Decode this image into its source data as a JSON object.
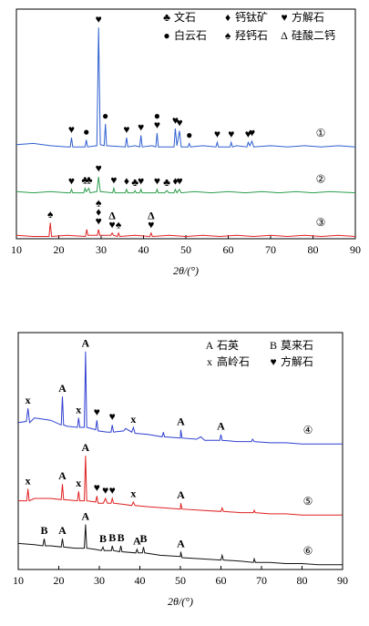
{
  "chart_data": [
    {
      "type": "line",
      "xlabel": "2θ/(°)",
      "xlim": [
        10,
        90
      ],
      "xticks": [
        10,
        20,
        30,
        40,
        50,
        60,
        70,
        80,
        90
      ],
      "ylim": [
        0,
        100
      ],
      "legend": [
        {
          "symbol": "♣",
          "label": "文石"
        },
        {
          "symbol": "♦",
          "label": "钙钛矿"
        },
        {
          "symbol": "♥",
          "label": "方解石"
        },
        {
          "symbol": "●",
          "label": "白云石"
        },
        {
          "symbol": "♠",
          "label": "羟钙石"
        },
        {
          "symbol": "Δ",
          "label": "硅酸二钙"
        }
      ],
      "series": [
        {
          "name": "①",
          "color": "#2f5fd0",
          "x": [
            10,
            14,
            18,
            22,
            22.7,
            23,
            23.3,
            26.2,
            26.5,
            26.8,
            29,
            29.4,
            29.8,
            30.7,
            31,
            31.3,
            35.7,
            36,
            36.3,
            38,
            39.1,
            39.4,
            39.7,
            42,
            42.9,
            43.2,
            43.5,
            46,
            47.2,
            47.5,
            47.9,
            48.5,
            48.9,
            50.5,
            50.8,
            51.1,
            54,
            57.1,
            57.4,
            57.7,
            60.4,
            60.7,
            61,
            62,
            64.4,
            64.7,
            65.1,
            65.6,
            66,
            70,
            74,
            78,
            82,
            86,
            90
          ],
          "values": [
            41,
            41.5,
            40.5,
            40,
            40,
            44,
            40,
            40,
            43,
            40,
            40.5,
            92,
            41,
            40.5,
            50,
            40.5,
            40,
            44,
            40,
            40.5,
            40,
            45,
            40,
            40.5,
            40,
            46,
            40,
            40,
            40,
            48,
            40.5,
            47,
            40,
            40,
            41.5,
            40,
            40.5,
            40,
            42,
            40,
            40,
            42,
            40,
            40.5,
            40,
            42,
            40.5,
            42.5,
            40,
            40.5,
            40,
            40.5,
            40,
            40.5,
            40
          ],
          "peaks": [
            {
              "text": "♥",
              "x": 23
            },
            {
              "text": "●",
              "x": 26.5
            },
            {
              "text": "♥",
              "x": 29.4
            },
            {
              "text": "●",
              "x": 31
            },
            {
              "text": "♥",
              "x": 36
            },
            {
              "text": "♥",
              "x": 39.4
            },
            {
              "text": "♥",
              "x": 43.2
            },
            {
              "text": "●",
              "x": 43.2
            },
            {
              "text": "♥",
              "x": 47.5
            },
            {
              "text": "♥",
              "x": 48.5
            },
            {
              "text": "●",
              "x": 50.8
            },
            {
              "text": "♥",
              "x": 57.4
            },
            {
              "text": "♥",
              "x": 60.7
            },
            {
              "text": "♥",
              "x": 64.7
            },
            {
              "text": "♥",
              "x": 65.6
            }
          ]
        },
        {
          "name": "②",
          "color": "#2e9e4f",
          "x": [
            10,
            14,
            18,
            22,
            22.7,
            23,
            23.3,
            25.9,
            26.2,
            26.5,
            27.1,
            27.4,
            29,
            29.4,
            29.8,
            32.7,
            33,
            33.3,
            35.7,
            36,
            36.3,
            37.7,
            38,
            38.3,
            39.1,
            39.4,
            39.7,
            42.9,
            43.2,
            43.5,
            45,
            45.5,
            46,
            47.2,
            47.5,
            47.9,
            48.5,
            48.9,
            52,
            56,
            60,
            64,
            68,
            72,
            76,
            80,
            84,
            90
          ],
          "values": [
            20.5,
            20,
            20.5,
            20,
            20,
            21.5,
            20,
            20,
            22,
            20.5,
            22,
            20,
            20.5,
            27,
            20.5,
            20,
            22,
            20,
            20,
            21.5,
            20,
            20,
            21,
            20,
            20,
            21.5,
            20,
            20,
            21.5,
            20,
            20,
            21,
            20,
            20,
            21.5,
            20,
            21.5,
            20,
            20.5,
            20,
            20.5,
            20,
            20.5,
            20,
            20.5,
            20,
            20.5,
            20
          ],
          "peaks": [
            {
              "text": "♥",
              "x": 23
            },
            {
              "text": "♣",
              "x": 26.2
            },
            {
              "text": "♣",
              "x": 27.1
            },
            {
              "text": "♥",
              "x": 29.4
            },
            {
              "text": "♥",
              "x": 33
            },
            {
              "text": "♦",
              "x": 36
            },
            {
              "text": "♣",
              "x": 38
            },
            {
              "text": "♥",
              "x": 39.4
            },
            {
              "text": "♥",
              "x": 43.2
            },
            {
              "text": "♣",
              "x": 45.5
            },
            {
              "text": "♦",
              "x": 47.5
            },
            {
              "text": "♥",
              "x": 48.5
            }
          ]
        },
        {
          "name": "③",
          "color": "#e02020",
          "x": [
            10,
            14,
            17.7,
            18,
            18.3,
            22,
            26.3,
            26.6,
            26.9,
            29.1,
            29.4,
            29.7,
            32.3,
            32.6,
            32.9,
            33.8,
            34.1,
            34.4,
            38,
            41.5,
            41.8,
            42.1,
            46,
            50,
            54,
            58,
            62,
            66,
            70,
            74,
            78,
            82,
            86,
            90
          ],
          "values": [
            1.5,
            1,
            1,
            7,
            1,
            1.5,
            1,
            4,
            1.5,
            1.5,
            4,
            1.5,
            1.5,
            2.5,
            1.5,
            1,
            2.5,
            1,
            1.5,
            1,
            2.5,
            1,
            1.5,
            1,
            1.5,
            1,
            1.5,
            1,
            1.5,
            1,
            1.5,
            1,
            1.5,
            1
          ],
          "peaks": [
            {
              "text": "♠",
              "x": 18
            },
            {
              "text": "♥",
              "x": 29.4
            },
            {
              "text": "♦",
              "x": 29.4
            },
            {
              "text": "♠",
              "x": 29.4
            },
            {
              "text": "♥",
              "x": 32.6
            },
            {
              "text": "Δ",
              "x": 32.6
            },
            {
              "text": "♠",
              "x": 34.1
            },
            {
              "text": "♥",
              "x": 41.8
            },
            {
              "text": "Δ",
              "x": 41.8
            }
          ]
        }
      ]
    },
    {
      "type": "line",
      "xlabel": "2θ/(°)",
      "xlim": [
        10,
        90
      ],
      "xticks": [
        10,
        20,
        30,
        40,
        50,
        60,
        70,
        80,
        90
      ],
      "ylim": [
        0,
        100
      ],
      "legend": [
        {
          "symbol": "A",
          "label": "石英"
        },
        {
          "symbol": "B",
          "label": "莫来石"
        },
        {
          "symbol": "x",
          "label": "高岭石"
        },
        {
          "symbol": "♥",
          "label": "方解石"
        }
      ],
      "series": [
        {
          "name": "④",
          "color": "#2f3fd0",
          "x": [
            10,
            12,
            12.4,
            12.8,
            14,
            18,
            20.6,
            20.9,
            21.2,
            22,
            24.6,
            24.9,
            25.2,
            26.3,
            26.6,
            26.9,
            29.1,
            29.4,
            29.7,
            32,
            32.9,
            33.2,
            33.5,
            36,
            36.5,
            38,
            38.4,
            38.8,
            42,
            45.5,
            45.8,
            46.1,
            50,
            50.1,
            50.4,
            54,
            55,
            56,
            59.7,
            60,
            60.3,
            64,
            67.5,
            67.8,
            68.2,
            72,
            76,
            80,
            84,
            88,
            90
          ],
          "values": [
            62,
            62.5,
            68,
            62,
            64,
            63,
            61,
            73,
            61,
            60.5,
            60,
            64,
            60,
            60,
            92,
            60,
            59,
            63,
            58.5,
            58,
            58,
            61,
            58,
            58.5,
            59.5,
            58,
            60,
            57.5,
            57,
            56,
            58,
            56,
            55.5,
            59,
            55.5,
            55,
            56,
            54.5,
            54.5,
            57,
            54.5,
            54,
            54,
            55,
            54,
            53.5,
            53.5,
            53,
            53,
            53,
            53
          ],
          "peaks": [
            {
              "text": "x",
              "x": 12.4
            },
            {
              "text": "A",
              "x": 20.9
            },
            {
              "text": "x",
              "x": 24.9
            },
            {
              "text": "A",
              "x": 26.6
            },
            {
              "text": "♥",
              "x": 29.4
            },
            {
              "text": "♥",
              "x": 33.2
            },
            {
              "text": "x",
              "x": 38.4
            },
            {
              "text": "A",
              "x": 50.1
            },
            {
              "text": "A",
              "x": 60
            }
          ]
        },
        {
          "name": "⑤",
          "color": "#e02020",
          "x": [
            10,
            12.1,
            12.4,
            12.7,
            14,
            18,
            20.6,
            20.9,
            21.2,
            24.6,
            24.9,
            25.2,
            26.3,
            26.6,
            26.9,
            29.1,
            29.4,
            29.7,
            31,
            31.5,
            32,
            32.9,
            33.2,
            33.5,
            36,
            38,
            38.4,
            38.8,
            42,
            46,
            50,
            50.1,
            50.4,
            55,
            60,
            60.3,
            60.6,
            65,
            68,
            68.2,
            68.5,
            72,
            76,
            80,
            84,
            90
          ],
          "values": [
            29,
            29,
            34,
            29,
            30,
            30,
            29.5,
            36,
            29.5,
            29,
            33,
            29,
            29,
            48,
            29,
            28.5,
            31,
            28,
            28,
            30,
            28,
            28,
            30,
            28,
            27.5,
            27,
            28.5,
            27,
            26.5,
            26,
            25.5,
            28,
            25.5,
            25,
            24.5,
            26,
            24.5,
            24,
            24,
            25,
            24,
            23.5,
            23.5,
            23,
            23,
            23
          ],
          "peaks": [
            {
              "text": "x",
              "x": 12.4
            },
            {
              "text": "A",
              "x": 20.9
            },
            {
              "text": "x",
              "x": 24.9
            },
            {
              "text": "A",
              "x": 26.6
            },
            {
              "text": "♥",
              "x": 29.4
            },
            {
              "text": "♥",
              "x": 31.5
            },
            {
              "text": "♥",
              "x": 33.2
            },
            {
              "text": "x",
              "x": 38.4
            },
            {
              "text": "A",
              "x": 50.1
            }
          ]
        },
        {
          "name": "⑥",
          "color": "#111111",
          "x": [
            10,
            14,
            16.1,
            16.4,
            16.7,
            18,
            20.6,
            20.9,
            21.2,
            24,
            26.3,
            26.6,
            26.9,
            29,
            30.5,
            30.9,
            31.2,
            33,
            33.2,
            33.5,
            35,
            35.3,
            35.6,
            39,
            39.3,
            39.6,
            40.6,
            40.9,
            41.2,
            45,
            50,
            50.1,
            50.4,
            55,
            60,
            60.3,
            60.6,
            65,
            68,
            68.2,
            68.5,
            72,
            76,
            80,
            84,
            90
          ],
          "values": [
            11,
            10.5,
            10,
            13,
            10,
            10,
            9.5,
            13,
            9.5,
            9,
            9,
            19,
            9,
            8.5,
            8,
            9.5,
            8,
            8,
            10,
            8,
            7.5,
            10,
            7.5,
            7,
            8.5,
            7,
            7,
            9.5,
            7,
            6,
            5.5,
            7.5,
            5,
            4.5,
            4,
            6,
            4,
            3.5,
            3,
            4.5,
            3,
            3,
            2.5,
            2.5,
            2,
            2
          ],
          "peaks": [
            {
              "text": "B",
              "x": 16.4
            },
            {
              "text": "A",
              "x": 20.9
            },
            {
              "text": "A",
              "x": 26.6
            },
            {
              "text": "B",
              "x": 30.9
            },
            {
              "text": "B",
              "x": 33.2
            },
            {
              "text": "B",
              "x": 35.3
            },
            {
              "text": "A",
              "x": 39.3
            },
            {
              "text": "B",
              "x": 40.9
            },
            {
              "text": "A",
              "x": 50.1
            }
          ]
        }
      ]
    }
  ]
}
